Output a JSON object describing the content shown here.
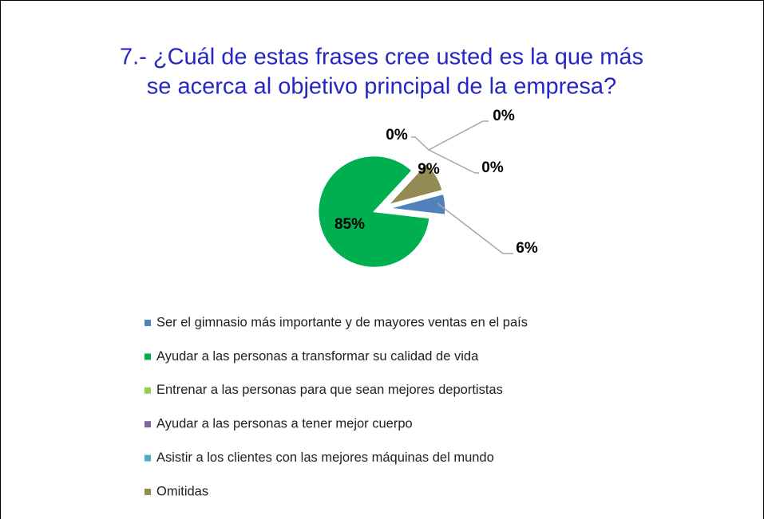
{
  "chart_data": {
    "type": "pie",
    "title": [
      "7.- ¿Cuál de estas frases cree usted es la que más",
      "se acerca al objetivo principal de la empresa?"
    ],
    "categories": [
      "Ser el gimnasio más importante y de mayores ventas en el país",
      "Ayudar a las personas a transformar su calidad de vida",
      "Entrenar a las personas para que sean mejores deportistas",
      "Ayudar a las personas a tener mejor cuerpo",
      "Asistir a los clientes con las mejores máquinas del mundo",
      "Omitidas"
    ],
    "values": [
      6,
      85,
      0,
      0,
      0,
      9
    ],
    "value_labels": [
      "6%",
      "85%",
      "0%",
      "0%",
      "0%",
      "9%"
    ],
    "colors": [
      "#4f81bd",
      "#00b050",
      "#92d050",
      "#8064a2",
      "#4bacc6",
      "#948a54"
    ],
    "legend": "bottom"
  }
}
